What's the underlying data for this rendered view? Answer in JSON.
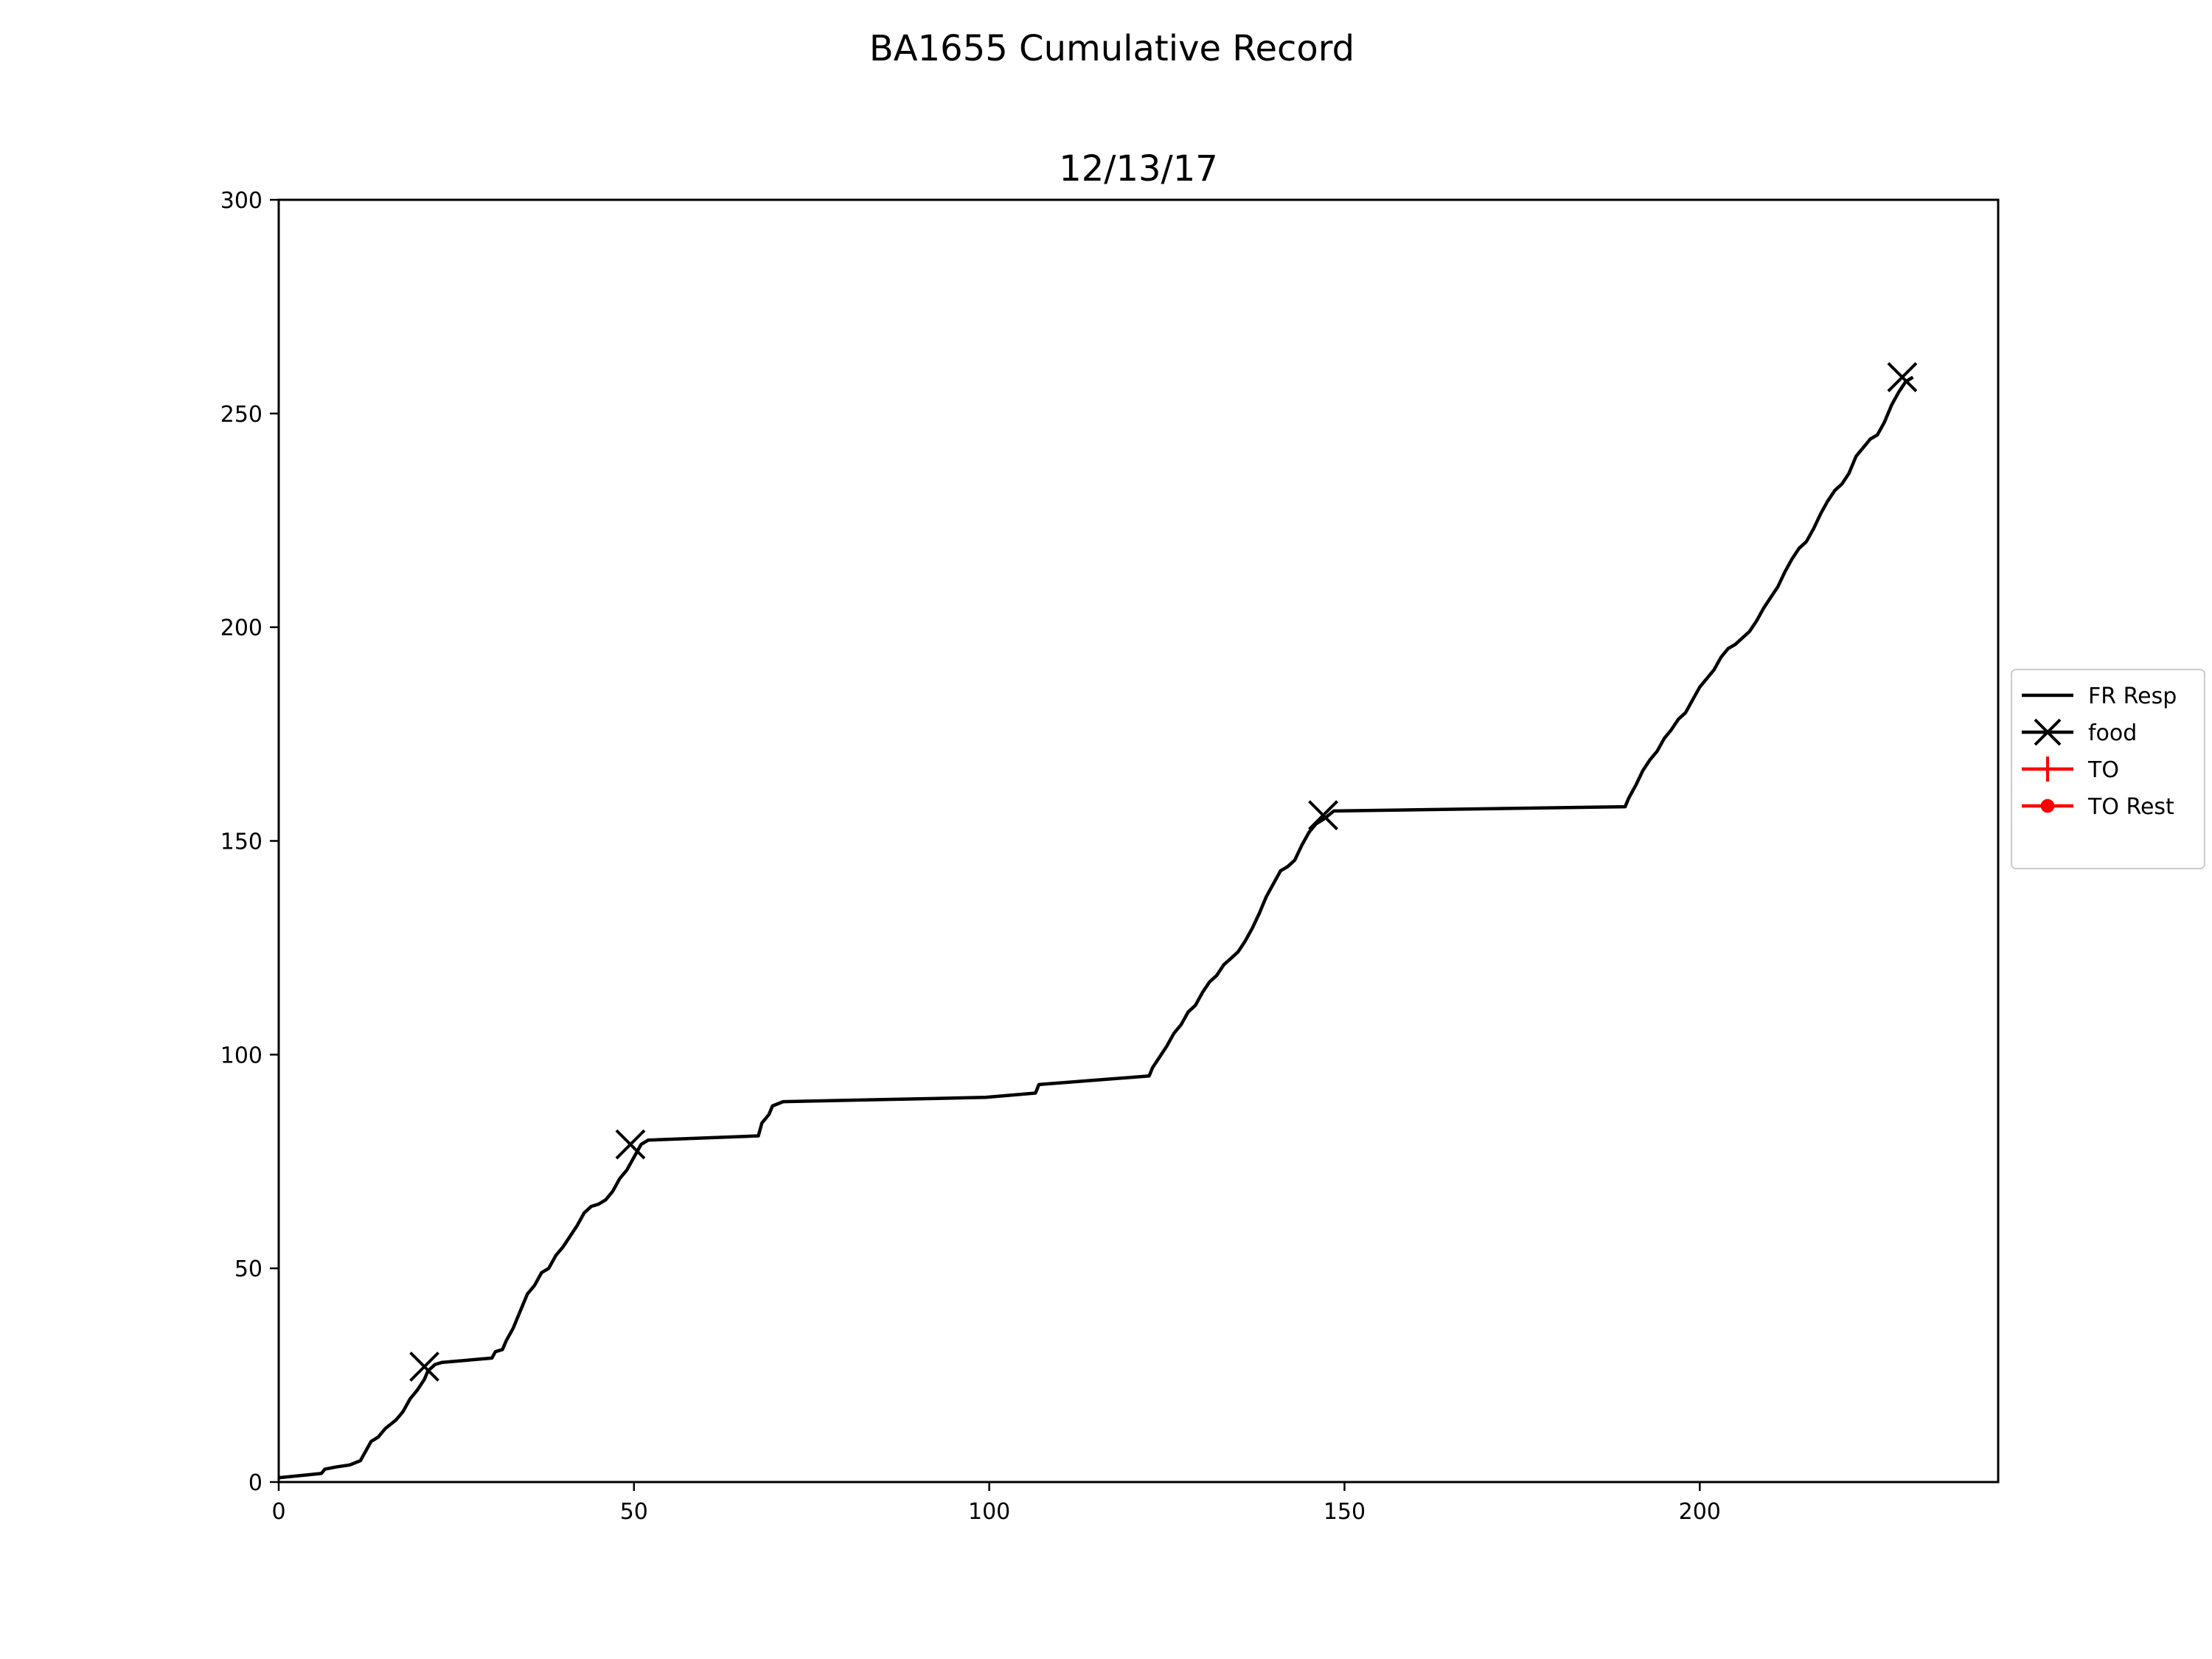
{
  "chart_data": {
    "type": "line",
    "suptitle": "BA1655 Cumulative Record",
    "title": "12/13/17",
    "xlabel": "",
    "ylabel": "",
    "xlim": [
      0,
      242
    ],
    "ylim": [
      0,
      300
    ],
    "xticks": [
      0,
      50,
      100,
      150,
      200
    ],
    "yticks": [
      0,
      50,
      100,
      150,
      200,
      250,
      300
    ],
    "grid": false,
    "legend_position": "center-right outside",
    "series": [
      {
        "name": "FR Resp",
        "kind": "line",
        "color": "#000000",
        "points": [
          [
            0,
            1
          ],
          [
            6,
            2
          ],
          [
            6.5,
            3
          ],
          [
            8,
            3.5
          ],
          [
            10,
            4
          ],
          [
            11.5,
            5
          ],
          [
            12.5,
            8
          ],
          [
            13,
            9.5
          ],
          [
            14,
            10.5
          ],
          [
            15,
            12.5
          ],
          [
            16.5,
            14.5
          ],
          [
            17.5,
            16.5
          ],
          [
            18.5,
            19.5
          ],
          [
            19.5,
            21.5
          ],
          [
            20.5,
            24
          ],
          [
            21,
            26
          ],
          [
            22,
            27.5
          ],
          [
            23,
            28
          ],
          [
            30,
            29
          ],
          [
            30.5,
            30.5
          ],
          [
            31.5,
            31
          ],
          [
            32,
            33
          ],
          [
            33,
            36
          ],
          [
            34,
            40
          ],
          [
            35,
            44
          ],
          [
            36,
            46
          ],
          [
            37,
            49
          ],
          [
            38,
            50
          ],
          [
            39,
            53
          ],
          [
            40,
            55
          ],
          [
            41,
            57.5
          ],
          [
            42,
            60
          ],
          [
            43,
            63
          ],
          [
            44,
            64.5
          ],
          [
            45,
            65
          ],
          [
            46,
            66
          ],
          [
            47,
            68
          ],
          [
            48,
            71
          ],
          [
            49,
            73
          ],
          [
            50,
            76
          ],
          [
            51,
            79
          ],
          [
            52,
            80
          ],
          [
            67.5,
            81
          ],
          [
            68,
            84
          ],
          [
            69,
            86
          ],
          [
            69.5,
            88
          ],
          [
            71,
            89
          ],
          [
            99.5,
            90
          ],
          [
            106.5,
            91
          ],
          [
            107,
            93
          ],
          [
            122.5,
            95
          ],
          [
            123,
            97
          ],
          [
            124,
            99.5
          ],
          [
            125,
            102
          ],
          [
            126,
            105
          ],
          [
            127,
            107
          ],
          [
            128,
            110
          ],
          [
            129,
            111.5
          ],
          [
            130,
            114.5
          ],
          [
            131,
            117
          ],
          [
            132,
            118.5
          ],
          [
            133,
            121
          ],
          [
            134,
            122.5
          ],
          [
            135,
            124
          ],
          [
            136,
            126.5
          ],
          [
            137,
            129.5
          ],
          [
            138,
            133
          ],
          [
            139,
            137
          ],
          [
            140,
            140
          ],
          [
            141,
            143
          ],
          [
            142,
            144
          ],
          [
            143,
            145.5
          ],
          [
            144,
            149
          ],
          [
            145,
            152
          ],
          [
            146,
            154
          ],
          [
            147,
            155
          ],
          [
            148.5,
            157
          ],
          [
            189.5,
            158
          ],
          [
            190,
            160
          ],
          [
            191,
            163
          ],
          [
            192,
            166.5
          ],
          [
            193,
            169
          ],
          [
            194,
            171
          ],
          [
            195,
            174
          ],
          [
            196,
            176
          ],
          [
            197,
            178.5
          ],
          [
            198,
            180
          ],
          [
            199,
            183
          ],
          [
            200,
            186
          ],
          [
            201,
            188
          ],
          [
            202,
            190
          ],
          [
            203,
            193
          ],
          [
            204,
            195
          ],
          [
            205,
            196
          ],
          [
            206,
            197.5
          ],
          [
            207,
            199
          ],
          [
            208,
            201.5
          ],
          [
            209,
            204.5
          ],
          [
            210,
            207
          ],
          [
            211,
            209.5
          ],
          [
            212,
            213
          ],
          [
            213,
            216
          ],
          [
            214,
            218.5
          ],
          [
            215,
            220
          ],
          [
            216,
            223
          ],
          [
            217,
            226.5
          ],
          [
            218,
            229.5
          ],
          [
            219,
            232
          ],
          [
            220,
            233.5
          ],
          [
            221,
            236
          ],
          [
            222,
            240
          ],
          [
            223,
            242
          ],
          [
            224,
            244
          ],
          [
            225,
            245
          ],
          [
            226,
            248
          ],
          [
            227,
            252
          ],
          [
            228,
            255
          ],
          [
            229,
            257.5
          ],
          [
            230,
            258.5
          ]
        ]
      },
      {
        "name": "food",
        "kind": "marker-x",
        "color": "#000000",
        "points": [
          [
            20.5,
            27
          ],
          [
            49.5,
            79
          ],
          [
            147,
            156
          ],
          [
            228.5,
            258.5
          ]
        ]
      },
      {
        "name": "TO",
        "kind": "marker-plus",
        "color": "#ff0000",
        "points": []
      },
      {
        "name": "TO Rest",
        "kind": "marker-dot",
        "color": "#ff0000",
        "points": []
      }
    ]
  }
}
